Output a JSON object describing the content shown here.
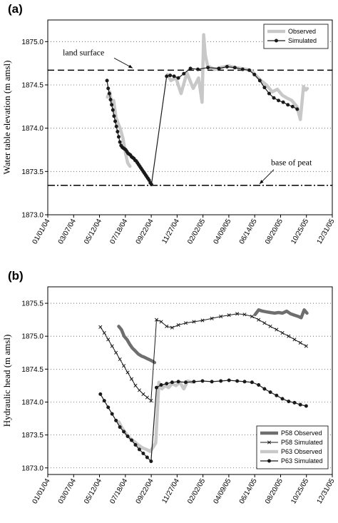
{
  "chart_data": [
    {
      "type": "line",
      "panel_label": "(a)",
      "title": "",
      "xlabel": "",
      "ylabel": "Water table elevation (m amsl)",
      "xlim": [
        "2004-01-01",
        "2005-12-31"
      ],
      "ylim": [
        1873.0,
        1875.25
      ],
      "x_ticks": [
        "01/01/04",
        "03/07/04",
        "05/12/04",
        "07/18/04",
        "09/22/04",
        "11/27/04",
        "02/02/05",
        "04/09/05",
        "06/14/05",
        "08/20/05",
        "10/25/05",
        "12/31/05"
      ],
      "y_ticks": [
        "1873.0",
        "1873.5",
        "1874.0",
        "1874.5",
        "1875.0"
      ],
      "y_tick_values": [
        1873.0,
        1873.5,
        1874.0,
        1874.5,
        1875.0
      ],
      "grid": "dotted horizontal",
      "legend": {
        "placement": "top-right",
        "entries": [
          "Observed",
          "Simulated"
        ]
      },
      "reference_lines": [
        {
          "label": "land surface",
          "y": 1874.67,
          "style": "dashed"
        },
        {
          "label": "base of peat",
          "y": 1873.34,
          "style": "dash-dot"
        }
      ],
      "series": [
        {
          "name": "Observed",
          "style": "thick-light-gray",
          "color": "#c8c8c8",
          "x": [
            "2004-06-02",
            "2004-06-08",
            "2004-06-13",
            "2004-06-18",
            "2004-06-24",
            "2004-06-30",
            "2004-07-06",
            "2004-07-12",
            "2004-07-18",
            "2004-07-24",
            "2004-07-30",
            "2004-11-03",
            "2004-11-12",
            "2004-11-25",
            "2004-12-08",
            "2004-12-23",
            "2005-01-08",
            "2005-01-22",
            "2005-01-31",
            "2005-02-04",
            "2005-02-08",
            "2005-02-14",
            "2005-02-22",
            "2005-03-05",
            "2005-03-20",
            "2005-04-09",
            "2005-04-25",
            "2005-05-10",
            "2005-05-25",
            "2005-06-08",
            "2005-06-20",
            "2005-07-01",
            "2005-07-15",
            "2005-07-30",
            "2005-08-12",
            "2005-08-25",
            "2005-09-05",
            "2005-09-18",
            "2005-10-01",
            "2005-10-10",
            "2005-10-18",
            "2005-10-24",
            "2005-10-28"
          ],
          "y": [
            1874.36,
            1874.42,
            1874.28,
            1874.32,
            1874.12,
            1874.05,
            1873.98,
            1873.88,
            1873.72,
            1873.6,
            1873.56,
            1874.62,
            1874.55,
            1874.58,
            1874.4,
            1874.64,
            1874.46,
            1874.58,
            1874.3,
            1875.08,
            1874.85,
            1874.72,
            1874.7,
            1874.68,
            1874.7,
            1874.72,
            1874.7,
            1874.69,
            1874.68,
            1874.66,
            1874.6,
            1874.55,
            1874.5,
            1874.42,
            1874.45,
            1874.38,
            1874.35,
            1874.32,
            1874.25,
            1874.1,
            1874.48,
            1874.44,
            1874.46
          ]
        },
        {
          "name": "Simulated",
          "style": "line-with-circle-markers",
          "color": "#1a1a1a",
          "x": [
            "2004-06-01",
            "2004-06-04",
            "2004-06-07",
            "2004-06-10",
            "2004-06-13",
            "2004-06-16",
            "2004-06-19",
            "2004-06-22",
            "2004-06-25",
            "2004-06-28",
            "2004-07-01",
            "2004-07-04",
            "2004-07-07",
            "2004-07-10",
            "2004-07-13",
            "2004-07-16",
            "2004-07-19",
            "2004-07-22",
            "2004-07-25",
            "2004-07-28",
            "2004-07-31",
            "2004-08-03",
            "2004-08-06",
            "2004-08-09",
            "2004-08-12",
            "2004-08-15",
            "2004-08-18",
            "2004-08-21",
            "2004-08-24",
            "2004-08-27",
            "2004-08-30",
            "2004-09-02",
            "2004-09-05",
            "2004-09-08",
            "2004-09-11",
            "2004-09-14",
            "2004-09-17",
            "2004-09-20",
            "2004-09-23",
            "2004-11-01",
            "2004-11-10",
            "2004-11-20",
            "2004-12-01",
            "2004-12-15",
            "2005-01-01",
            "2005-01-20",
            "2005-02-15",
            "2005-03-15",
            "2005-04-05",
            "2005-04-25",
            "2005-05-15",
            "2005-06-01",
            "2005-06-14",
            "2005-06-28",
            "2005-07-10",
            "2005-07-22",
            "2005-08-03",
            "2005-08-15",
            "2005-08-27",
            "2005-09-08",
            "2005-09-20",
            "2005-10-02"
          ],
          "y": [
            1874.55,
            1874.46,
            1874.4,
            1874.33,
            1874.27,
            1874.21,
            1874.14,
            1874.08,
            1874.02,
            1873.96,
            1873.9,
            1873.84,
            1873.8,
            1873.78,
            1873.77,
            1873.76,
            1873.75,
            1873.73,
            1873.71,
            1873.7,
            1873.69,
            1873.67,
            1873.66,
            1873.65,
            1873.63,
            1873.62,
            1873.6,
            1873.58,
            1873.56,
            1873.54,
            1873.52,
            1873.5,
            1873.48,
            1873.46,
            1873.44,
            1873.42,
            1873.4,
            1873.37,
            1873.35,
            1874.6,
            1874.61,
            1874.6,
            1874.58,
            1874.63,
            1874.69,
            1874.68,
            1874.7,
            1874.69,
            1874.71,
            1874.7,
            1874.68,
            1874.67,
            1874.62,
            1874.55,
            1874.47,
            1874.4,
            1874.35,
            1874.32,
            1874.3,
            1874.27,
            1874.25,
            1874.22
          ]
        }
      ]
    },
    {
      "type": "line",
      "panel_label": "(b)",
      "title": "",
      "xlabel": "",
      "ylabel": "Hydraulic head (m amsl)",
      "xlim": [
        "2004-01-01",
        "2005-12-31"
      ],
      "ylim": [
        1872.9,
        1875.75
      ],
      "x_ticks": [
        "01/01/04",
        "03/07/04",
        "05/12/04",
        "07/18/04",
        "09/22/04",
        "11/27/04",
        "02/02/05",
        "04/09/05",
        "06/14/05",
        "08/20/05",
        "10/25/05",
        "12/31/05"
      ],
      "y_ticks": [
        "1873.0",
        "1873.5",
        "1874.0",
        "1874.5",
        "1875.0",
        "1875.5"
      ],
      "y_tick_values": [
        1873.0,
        1873.5,
        1874.0,
        1874.5,
        1875.0,
        1875.5
      ],
      "grid": "dotted horizontal",
      "legend": {
        "placement": "bottom-right",
        "entries": [
          "P58 Observed",
          "P58 Simulated",
          "P63 Observed",
          "P63 Simulated"
        ]
      },
      "series": [
        {
          "name": "P58 Observed",
          "style": "thick-dark-gray",
          "color": "#6e6e6e",
          "x": [
            "2004-07-01",
            "2004-07-08",
            "2004-07-15",
            "2004-07-22",
            "2004-07-29",
            "2004-08-05",
            "2004-08-12",
            "2004-08-20",
            "2004-08-28",
            "2004-09-05",
            "2004-09-12",
            "2004-09-19",
            "2004-09-26",
            "2004-10-01",
            "2005-06-16",
            "2005-06-25",
            "2005-07-05",
            "2005-07-15",
            "2005-07-25",
            "2005-08-05",
            "2005-08-15",
            "2005-08-25",
            "2005-09-05",
            "2005-09-15",
            "2005-09-25",
            "2005-10-05",
            "2005-10-12",
            "2005-10-20",
            "2005-10-27"
          ],
          "y": [
            1875.15,
            1875.1,
            1875.0,
            1874.95,
            1874.88,
            1874.82,
            1874.78,
            1874.73,
            1874.7,
            1874.68,
            1874.66,
            1874.64,
            1874.62,
            1874.6,
            1875.33,
            1875.4,
            1875.38,
            1875.37,
            1875.36,
            1875.35,
            1875.36,
            1875.35,
            1875.38,
            1875.34,
            1875.32,
            1875.3,
            1875.28,
            1875.4,
            1875.35
          ]
        },
        {
          "name": "P58 Simulated",
          "style": "line-with-x-markers",
          "color": "#1a1a1a",
          "x": [
            "2004-05-15",
            "2004-05-25",
            "2004-06-04",
            "2004-06-14",
            "2004-06-24",
            "2004-07-04",
            "2004-07-14",
            "2004-07-24",
            "2004-08-03",
            "2004-08-13",
            "2004-08-23",
            "2004-09-02",
            "2004-09-12",
            "2004-09-22",
            "2004-10-06",
            "2004-10-18",
            "2004-11-01",
            "2004-11-15",
            "2004-12-01",
            "2004-12-20",
            "2005-01-10",
            "2005-02-01",
            "2005-02-25",
            "2005-03-20",
            "2005-04-10",
            "2005-05-01",
            "2005-05-20",
            "2005-06-08",
            "2005-06-25",
            "2005-07-10",
            "2005-07-25",
            "2005-08-10",
            "2005-08-25",
            "2005-09-10",
            "2005-09-25",
            "2005-10-10",
            "2005-10-25"
          ],
          "y": [
            1875.14,
            1875.05,
            1874.95,
            1874.85,
            1874.75,
            1874.65,
            1874.55,
            1874.45,
            1874.35,
            1874.25,
            1874.18,
            1874.12,
            1874.07,
            1874.02,
            1875.25,
            1875.22,
            1875.15,
            1875.13,
            1875.17,
            1875.2,
            1875.22,
            1875.24,
            1875.27,
            1875.3,
            1875.32,
            1875.34,
            1875.33,
            1875.3,
            1875.25,
            1875.2,
            1875.15,
            1875.1,
            1875.05,
            1875.0,
            1874.95,
            1874.9,
            1874.85
          ]
        },
        {
          "name": "P63 Observed",
          "style": "thick-light-gray",
          "color": "#c8c8c8",
          "x": [
            "2004-07-01",
            "2004-07-10",
            "2004-07-20",
            "2004-07-30",
            "2004-08-10",
            "2004-08-20",
            "2004-09-01",
            "2004-09-10",
            "2004-09-20",
            "2004-09-28",
            "2004-10-04",
            "2004-10-12",
            "2004-10-20",
            "2004-10-28",
            "2004-11-06",
            "2004-11-15",
            "2004-11-25",
            "2004-12-05",
            "2004-12-15",
            "2004-12-25",
            "2005-01-05"
          ],
          "y": [
            1873.7,
            1873.6,
            1873.52,
            1873.45,
            1873.4,
            1873.35,
            1873.3,
            1873.28,
            1873.25,
            1873.32,
            1873.38,
            1874.3,
            1874.2,
            1874.25,
            1874.22,
            1874.28,
            1874.25,
            1874.3,
            1874.2,
            1874.32,
            1874.3
          ]
        },
        {
          "name": "P63 Simulated",
          "style": "line-with-circle-markers",
          "color": "#1a1a1a",
          "x": [
            "2004-05-15",
            "2004-05-25",
            "2004-06-04",
            "2004-06-14",
            "2004-06-24",
            "2004-07-04",
            "2004-07-14",
            "2004-07-24",
            "2004-08-03",
            "2004-08-13",
            "2004-08-23",
            "2004-09-02",
            "2004-09-12",
            "2004-09-22",
            "2004-10-06",
            "2004-10-18",
            "2004-11-01",
            "2004-11-15",
            "2004-12-01",
            "2004-12-20",
            "2005-01-10",
            "2005-02-01",
            "2005-02-25",
            "2005-03-20",
            "2005-04-10",
            "2005-05-01",
            "2005-05-20",
            "2005-06-08",
            "2005-06-25",
            "2005-07-10",
            "2005-07-25",
            "2005-08-10",
            "2005-08-25",
            "2005-09-10",
            "2005-09-25",
            "2005-10-10",
            "2005-10-25"
          ],
          "y": [
            1874.12,
            1874.02,
            1873.92,
            1873.82,
            1873.72,
            1873.62,
            1873.55,
            1873.48,
            1873.42,
            1873.35,
            1873.28,
            1873.22,
            1873.16,
            1873.1,
            1874.22,
            1874.26,
            1874.28,
            1874.3,
            1874.31,
            1874.3,
            1874.31,
            1874.32,
            1874.31,
            1874.32,
            1874.33,
            1874.32,
            1874.31,
            1874.3,
            1874.26,
            1874.2,
            1874.15,
            1874.1,
            1874.05,
            1874.01,
            1873.99,
            1873.96,
            1873.94
          ]
        }
      ]
    }
  ]
}
